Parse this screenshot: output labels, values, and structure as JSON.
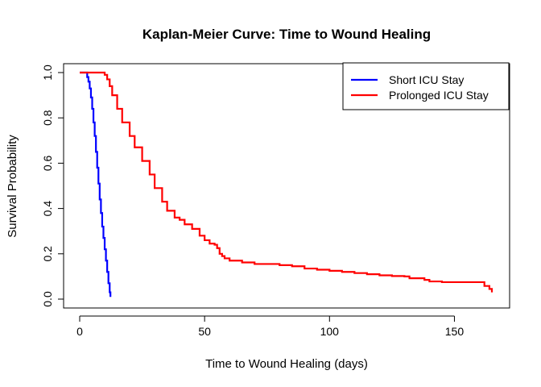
{
  "chart_data": {
    "type": "line",
    "title": "Kaplan-Meier Curve: Time to Wound Healing",
    "xlabel": "Time to Wound Healing (days)",
    "ylabel": "Survival Probability",
    "xlim": [
      0,
      165
    ],
    "ylim": [
      0,
      1
    ],
    "x_ticks": [
      0,
      50,
      100,
      150
    ],
    "y_ticks": [
      0.0,
      0.2,
      0.4,
      0.6,
      0.8,
      1.0
    ],
    "x_tick_labels": [
      "0",
      "50",
      "100",
      "150"
    ],
    "y_tick_labels": [
      "0.0",
      "0.2",
      "0.4",
      "0.6",
      "0.8",
      "1.0"
    ],
    "grid": false,
    "legend_position": "top-right",
    "series": [
      {
        "name": "Short ICU Stay",
        "color": "#0000FF",
        "x": [
          0,
          1,
          2,
          3,
          3.5,
          4,
          4.5,
          5,
          5.5,
          6,
          6.5,
          7,
          7.5,
          8,
          8.5,
          9,
          9.5,
          10,
          10.5,
          11,
          11.5,
          12,
          12.3
        ],
        "y": [
          1.0,
          1.0,
          1.0,
          0.98,
          0.96,
          0.93,
          0.89,
          0.84,
          0.78,
          0.72,
          0.65,
          0.58,
          0.51,
          0.44,
          0.38,
          0.32,
          0.27,
          0.22,
          0.17,
          0.12,
          0.07,
          0.03,
          0.01
        ]
      },
      {
        "name": "Prolonged ICU Stay",
        "color": "#FF0000",
        "x": [
          0,
          3,
          5,
          7,
          8,
          9,
          10,
          11,
          12,
          13,
          15,
          17,
          20,
          22,
          25,
          28,
          30,
          33,
          35,
          38,
          40,
          42,
          45,
          48,
          50,
          52,
          54,
          55,
          56,
          57,
          58,
          60,
          65,
          70,
          80,
          85,
          90,
          95,
          100,
          105,
          110,
          115,
          120,
          125,
          130,
          132,
          138,
          140,
          145,
          150,
          155,
          160,
          162,
          164,
          165
        ],
        "y": [
          1.0,
          1.0,
          1.0,
          1.0,
          1.0,
          1.0,
          0.99,
          0.97,
          0.94,
          0.9,
          0.84,
          0.78,
          0.72,
          0.67,
          0.61,
          0.55,
          0.49,
          0.43,
          0.39,
          0.36,
          0.35,
          0.33,
          0.31,
          0.28,
          0.26,
          0.245,
          0.24,
          0.225,
          0.2,
          0.19,
          0.18,
          0.17,
          0.162,
          0.155,
          0.15,
          0.145,
          0.135,
          0.13,
          0.125,
          0.12,
          0.115,
          0.11,
          0.105,
          0.102,
          0.1,
          0.092,
          0.085,
          0.078,
          0.075,
          0.075,
          0.075,
          0.075,
          0.058,
          0.045,
          0.03
        ]
      }
    ]
  }
}
